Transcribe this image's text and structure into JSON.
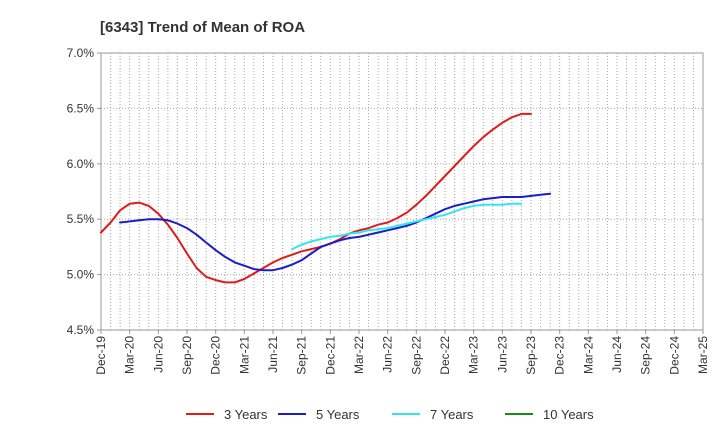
{
  "chart_data": {
    "type": "line",
    "title": "[6343]  Trend of Mean of ROA",
    "x_labels": [
      "Dec-19",
      "Mar-20",
      "Jun-20",
      "Sep-20",
      "Dec-20",
      "Mar-21",
      "Jun-21",
      "Sep-21",
      "Dec-21",
      "Mar-22",
      "Jun-22",
      "Sep-22",
      "Dec-22",
      "Mar-23",
      "Jun-23",
      "Sep-23",
      "Dec-23",
      "Mar-24",
      "Jun-24",
      "Sep-24",
      "Dec-24",
      "Mar-25"
    ],
    "y_ticks": [
      "4.5%",
      "5.0%",
      "5.5%",
      "6.0%",
      "6.5%",
      "7.0%"
    ],
    "ylim": [
      4.5,
      7.0
    ],
    "grid": true,
    "legend_position": "bottom",
    "series": [
      {
        "name": "3 Years",
        "color": "#e01b1b",
        "start_index": 0,
        "values": [
          5.38,
          5.47,
          5.58,
          5.64,
          5.65,
          5.62,
          5.55,
          5.45,
          5.33,
          5.19,
          5.06,
          4.98,
          4.95,
          4.93,
          4.93,
          4.96,
          5.01,
          5.06,
          5.11,
          5.15,
          5.18,
          5.21,
          5.23,
          5.25,
          5.28,
          5.32,
          5.37,
          5.4,
          5.42,
          5.45,
          5.47,
          5.51,
          5.56,
          5.63,
          5.71,
          5.8,
          5.89,
          5.98,
          6.07,
          6.16,
          6.24,
          6.31,
          6.37,
          6.42,
          6.45,
          6.45
        ]
      },
      {
        "name": "5 Years",
        "color": "#1c1cc8",
        "start_index": 2,
        "values": [
          5.47,
          5.48,
          5.49,
          5.5,
          5.5,
          5.49,
          5.46,
          5.42,
          5.36,
          5.29,
          5.22,
          5.16,
          5.11,
          5.08,
          5.05,
          5.04,
          5.04,
          5.06,
          5.09,
          5.13,
          5.19,
          5.25,
          5.28,
          5.31,
          5.33,
          5.34,
          5.36,
          5.38,
          5.4,
          5.42,
          5.44,
          5.47,
          5.51,
          5.55,
          5.59,
          5.62,
          5.64,
          5.66,
          5.68,
          5.69,
          5.7,
          5.7,
          5.7,
          5.71,
          5.72,
          5.73
        ]
      },
      {
        "name": "7 Years",
        "color": "#33e6ee",
        "start_index": 20,
        "values": [
          5.23,
          5.27,
          5.3,
          5.32,
          5.34,
          5.35,
          5.37,
          5.38,
          5.4,
          5.41,
          5.42,
          5.44,
          5.46,
          5.48,
          5.5,
          5.52,
          5.54,
          5.57,
          5.6,
          5.62,
          5.63,
          5.63,
          5.63,
          5.64,
          5.64
        ]
      },
      {
        "name": "10 Years",
        "color": "#1a8a1a",
        "start_index": 0,
        "values": []
      }
    ]
  }
}
